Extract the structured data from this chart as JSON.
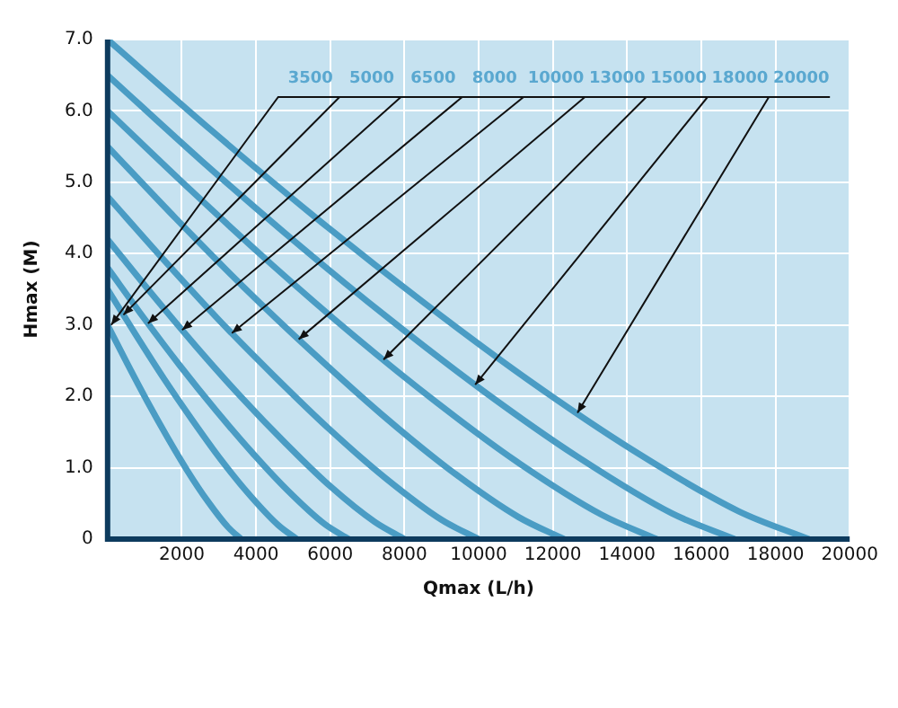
{
  "chart_data": {
    "type": "line",
    "xlabel": "Qmax (L/h)",
    "ylabel": "Hmax (M)",
    "xlim": [
      0,
      20000
    ],
    "xticks": [
      2000,
      4000,
      6000,
      8000,
      10000,
      12000,
      14000,
      16000,
      18000,
      20000
    ],
    "ylim": [
      0,
      7
    ],
    "yticks": [
      0,
      {
        "value": 1,
        "label": "1.0"
      },
      {
        "value": 2,
        "label": "2.0"
      },
      {
        "value": 3,
        "label": "3.0"
      },
      {
        "value": 4,
        "label": "4.0"
      },
      {
        "value": 5,
        "label": "5.0"
      },
      {
        "value": 6,
        "label": "6.0"
      },
      {
        "value": 7,
        "label": "7.0"
      }
    ],
    "grid": true,
    "legend": false,
    "marker": "none",
    "line_style": "solid",
    "series": [
      {
        "name": "3500",
        "color": "#4a9cc4",
        "x": [
          0,
          540,
          1080,
          1620,
          2160,
          2700,
          3240,
          3600
        ],
        "values": [
          3.0,
          2.45,
          1.92,
          1.42,
          0.95,
          0.53,
          0.17,
          0
        ]
      },
      {
        "name": "5000",
        "color": "#4a9cc4",
        "x": [
          0,
          765,
          1530,
          2295,
          3060,
          3825,
          4590,
          5100
        ],
        "values": [
          3.5,
          2.86,
          2.24,
          1.66,
          1.11,
          0.62,
          0.2,
          0
        ]
      },
      {
        "name": "6500",
        "color": "#4a9cc4",
        "x": [
          0,
          975,
          1950,
          2925,
          3900,
          4875,
          5850,
          6500
        ],
        "values": [
          3.8,
          3.1,
          2.43,
          1.8,
          1.21,
          0.67,
          0.21,
          0
        ]
      },
      {
        "name": "8000",
        "color": "#4a9cc4",
        "x": [
          0,
          1200,
          2400,
          3600,
          4800,
          6000,
          7200,
          8000
        ],
        "values": [
          4.2,
          3.43,
          2.69,
          1.99,
          1.34,
          0.74,
          0.24,
          0
        ]
      },
      {
        "name": "10000",
        "color": "#4a9cc4",
        "x": [
          0,
          1500,
          3000,
          4500,
          6000,
          7500,
          9000,
          10000
        ],
        "values": [
          4.8,
          3.92,
          3.07,
          2.28,
          1.53,
          0.85,
          0.27,
          0
        ]
      },
      {
        "name": "13000",
        "color": "#4a9cc4",
        "x": [
          0,
          1845,
          3690,
          5535,
          7380,
          9225,
          11070,
          12300
        ],
        "values": [
          5.5,
          4.49,
          3.52,
          2.61,
          1.75,
          0.97,
          0.31,
          0
        ]
      },
      {
        "name": "15000",
        "color": "#4a9cc4",
        "x": [
          0,
          2220,
          4440,
          6660,
          8880,
          11100,
          13320,
          14800
        ],
        "values": [
          6.0,
          4.9,
          3.84,
          2.84,
          1.91,
          1.06,
          0.34,
          0
        ]
      },
      {
        "name": "18000",
        "color": "#4a9cc4",
        "x": [
          0,
          2535,
          5070,
          7605,
          10140,
          12675,
          15210,
          16900
        ],
        "values": [
          6.5,
          5.3,
          4.16,
          3.08,
          2.07,
          1.15,
          0.36,
          0
        ]
      },
      {
        "name": "20000",
        "color": "#4a9cc4",
        "x": [
          0,
          2835,
          5670,
          8505,
          11340,
          14175,
          17010,
          18900
        ],
        "values": [
          7.0,
          5.71,
          4.48,
          3.32,
          2.23,
          1.24,
          0.39,
          0
        ]
      }
    ]
  }
}
